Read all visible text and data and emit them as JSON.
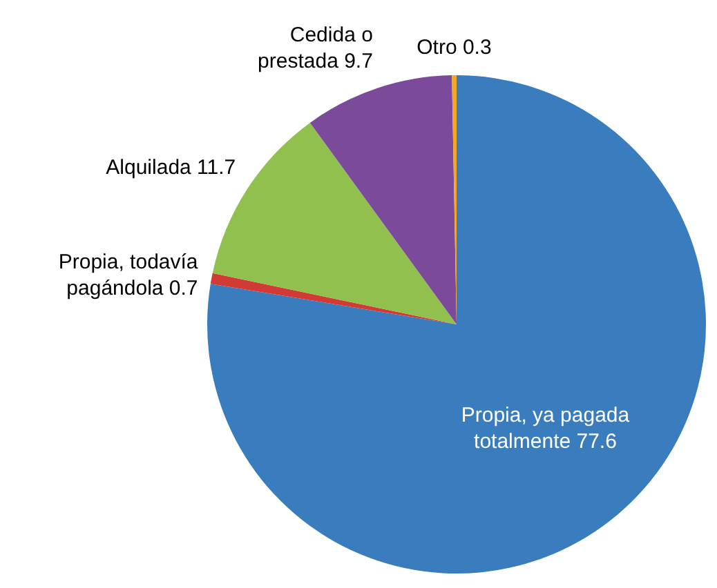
{
  "chart_data": {
    "type": "pie",
    "categories": [
      "Propia, ya pagada totalmente",
      "Propia, todavía pagándola",
      "Alquilada",
      "Cedida o prestada",
      "Otro"
    ],
    "values": [
      77.6,
      0.7,
      11.7,
      9.7,
      0.3
    ],
    "colors": [
      "#3a7dbf",
      "#d13b36",
      "#92c04f",
      "#7b4a9a",
      "#f5a623"
    ],
    "data_labels": true
  }
}
